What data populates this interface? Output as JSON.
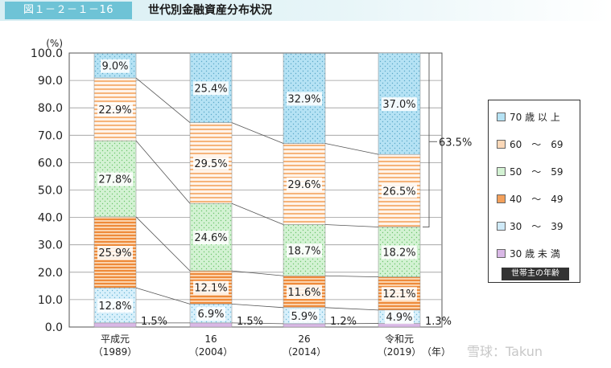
{
  "header": {
    "figure_number": "図１－２－１－16",
    "title": "世代別金融資産分布状況"
  },
  "chart_data": {
    "type": "bar",
    "stacked": true,
    "categories": [
      "平成元\n（1989）",
      "16\n（2004）",
      "26\n（2014）",
      "令和元\n（2019）"
    ],
    "x_unit": "（年）",
    "y_unit": "(%)",
    "ylim": [
      0,
      100
    ],
    "yticks": [
      "0.0",
      "10.0",
      "20.0",
      "30.0",
      "40.0",
      "50.0",
      "60.0",
      "70.0",
      "80.0",
      "90.0",
      "100.0"
    ],
    "grid": true,
    "legend_position": "right",
    "legend_title": "世帯主の年齢",
    "series": [
      {
        "name": "30 歳 未 満",
        "values": [
          1.5,
          1.5,
          1.2,
          1.3
        ],
        "labels": [
          "1.5%",
          "1.5%",
          "1.2%",
          "1.3%"
        ],
        "color": "#d9b8e6",
        "pattern": "plain"
      },
      {
        "name": "30　～　39",
        "values": [
          12.8,
          6.9,
          5.9,
          4.9
        ],
        "labels": [
          "12.8%",
          "6.9%",
          "5.9%",
          "4.9%"
        ],
        "color": "#cfeaf8",
        "pattern": "dots"
      },
      {
        "name": "40　～　49",
        "values": [
          25.9,
          12.1,
          11.6,
          12.1
        ],
        "labels": [
          "25.9%",
          "12.1%",
          "11.6%",
          "12.1%"
        ],
        "color": "#f3a05b",
        "pattern": "hlines"
      },
      {
        "name": "50　～　59",
        "values": [
          27.8,
          24.6,
          18.7,
          18.2
        ],
        "labels": [
          "27.8%",
          "24.6%",
          "18.7%",
          "18.2%"
        ],
        "color": "#d3f2d3",
        "pattern": "dots"
      },
      {
        "name": "60　～　69",
        "values": [
          22.9,
          29.5,
          29.6,
          26.5
        ],
        "labels": [
          "22.9%",
          "29.5%",
          "29.6%",
          "26.5%"
        ],
        "color": "#fbd8b8",
        "pattern": "hlines"
      },
      {
        "name": "70 歳 以 上",
        "values": [
          9.0,
          25.4,
          32.9,
          37.0
        ],
        "labels": [
          "9.0%",
          "25.4%",
          "32.9%",
          "37.0%"
        ],
        "color": "#b5e2f4",
        "pattern": "dots"
      }
    ],
    "annotations": [
      {
        "text": "63.5%",
        "note": "2019 60～69 + 70歳以上"
      }
    ]
  },
  "watermark": "雪球：Takun"
}
